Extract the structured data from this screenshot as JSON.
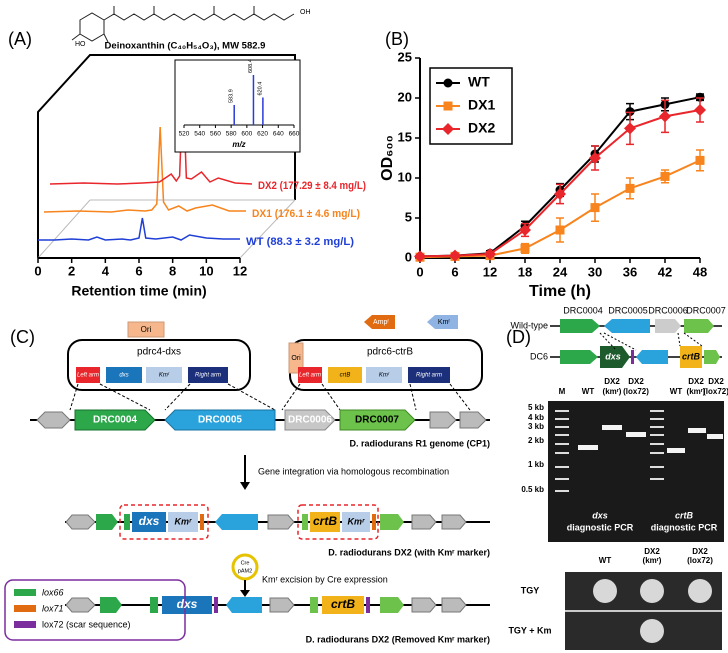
{
  "panel_labels": [
    "(A)",
    "(B)",
    "(C)",
    "(D)"
  ],
  "chart_data": [
    {
      "type": "line",
      "annotation": "Deinoxanthin (C₄₀H₅₄O₃), MW 582.9",
      "xlabel": "Retention time (min)",
      "xlim": [
        0,
        12
      ],
      "xticks": [
        0,
        2,
        4,
        6,
        8,
        10,
        12
      ],
      "series": [
        {
          "name": "WT (88.3 ± 3.2 mg/L)",
          "color": "#1f3fd6",
          "x": [
            0,
            1,
            2,
            3,
            3.5,
            4,
            5,
            5.5,
            6,
            6.2,
            6.4,
            7,
            8,
            8.5,
            9,
            10,
            11,
            12
          ],
          "values": [
            0,
            0,
            1,
            0,
            3,
            0,
            1,
            0,
            2,
            22,
            2,
            1,
            3,
            0,
            5,
            2,
            1,
            1
          ]
        },
        {
          "name": "DX1 (176.1 ± 4.6 mg/L)",
          "color": "#f7841c",
          "x": [
            0,
            2,
            4,
            5,
            6,
            6.4,
            6.7,
            6.9,
            7.1,
            7.4,
            8,
            8.5,
            9,
            10,
            11,
            12
          ],
          "values": [
            0,
            1,
            0,
            2,
            1,
            2,
            8,
            85,
            10,
            2,
            6,
            1,
            4,
            7,
            1,
            1
          ]
        },
        {
          "name": "DX2 (177.29 ± 8.4 mg/L)",
          "color": "#e8262b",
          "x": [
            0,
            2,
            4,
            5.5,
            6.5,
            7.2,
            7.5,
            7.7,
            7.9,
            8.1,
            8.4,
            9,
            9.5,
            10,
            11,
            12
          ],
          "values": [
            0,
            1,
            0,
            1,
            2,
            10,
            3,
            8,
            100,
            6,
            5,
            12,
            2,
            6,
            1,
            0
          ]
        }
      ],
      "inset": {
        "type": "bar",
        "xlabel": "m/z",
        "xlim": [
          520,
          660
        ],
        "xticks": [
          520,
          540,
          560,
          580,
          600,
          620,
          640,
          660
        ],
        "x": [
          583.9,
          608.4,
          620.4
        ],
        "values": [
          40,
          100,
          55
        ],
        "color": "#2a3bd6"
      }
    },
    {
      "type": "line",
      "ylabel": "OD₆₀₀",
      "xlabel": "Time (h)",
      "xlim": [
        0,
        48
      ],
      "xticks": [
        0,
        6,
        12,
        18,
        24,
        30,
        36,
        42,
        48
      ],
      "ylim": [
        0,
        25
      ],
      "yticks": [
        0,
        5,
        10,
        15,
        20,
        25
      ],
      "legend": "upper left",
      "series": [
        {
          "name": "WT",
          "color": "#000000",
          "marker": "circle",
          "values": [
            0.2,
            0.3,
            0.6,
            4,
            8.5,
            13,
            18.3,
            19.2,
            20.1
          ],
          "errors": [
            0.2,
            0.2,
            0.3,
            0.6,
            0.8,
            1,
            1,
            0.8,
            0.4
          ]
        },
        {
          "name": "DX1",
          "color": "#f7841c",
          "marker": "square",
          "values": [
            0.1,
            0.2,
            0.3,
            1.2,
            3.5,
            6.3,
            8.7,
            10.2,
            12.2
          ],
          "errors": [
            0.2,
            0.2,
            0.3,
            0.6,
            1.5,
            1.7,
            1.3,
            0.8,
            1.3
          ]
        },
        {
          "name": "DX2",
          "color": "#e8262b",
          "marker": "diamond",
          "values": [
            0.2,
            0.3,
            0.5,
            3.5,
            8,
            12.5,
            16.2,
            17.7,
            18.5
          ],
          "errors": [
            0.2,
            0.2,
            0.3,
            0.8,
            1.2,
            1.5,
            2,
            2,
            1.5
          ]
        }
      ]
    }
  ],
  "panel_c": {
    "plasmid_1": {
      "name": "pdrc4-dxs",
      "ori": "Ori",
      "parts": [
        "Left arm",
        "dxs",
        "Kmʳ",
        "Right arm"
      ]
    },
    "plasmid_2": {
      "name": "pdrc6-ctrB",
      "ori": "Ori",
      "amp": "Ampʳ",
      "km": "Kmʳ",
      "parts": [
        "Left arm",
        "crtB",
        "Kmʳ",
        "Right arm"
      ]
    },
    "genome_genes": [
      "DRC0004",
      "DRC0005",
      "DRC0006",
      "DRC0007"
    ],
    "genome_label": "D. radiodurans R1 genome (CP1)",
    "step_1": "Gene integration via homologous recombination",
    "dx2_inserts": [
      "dxs",
      "Kmʳ",
      "crtB",
      "Kmʳ"
    ],
    "dx2_label": "D. radiodurans DX2 (with Kmʳ marker)",
    "cre_plasmid": [
      "Cre",
      "pAM2"
    ],
    "step_2": "Kmʳ excision by Cre expression",
    "legend": [
      "lox66",
      "lox71",
      "lox72 (scar sequence)"
    ],
    "final_inserts": [
      "dxs",
      "crtB"
    ],
    "final_label": "D. radiodurans DX2 (Removed Kmʳ marker)"
  },
  "panel_d": {
    "map_rows": [
      "Wild-type",
      "DC6"
    ],
    "map_genes": [
      "DRC0004",
      "DRC0005",
      "DRC0006",
      "DRC0007"
    ],
    "map_inserts": [
      "dxs",
      "crtB"
    ],
    "gel_lanes": [
      [
        "M"
      ],
      [
        "WT"
      ],
      [
        "DX2",
        "(kmʳ)"
      ],
      [
        "DX2",
        "(lox72)"
      ],
      [
        "WT"
      ],
      [
        "DX2",
        "(kmʳ)"
      ],
      [
        "DX2",
        "(lox72)"
      ]
    ],
    "size_markers": [
      "5 kb",
      "4 kb",
      "3 kb",
      "2 kb",
      "1 kb",
      "0.5 kb"
    ],
    "gel_captions": [
      [
        "dxs",
        "diagnostic PCR"
      ],
      [
        "crtB",
        "diagnostic PCR"
      ]
    ],
    "plate_columns": [
      [
        "WT"
      ],
      [
        "DX2",
        "(kmʳ)"
      ],
      [
        "DX2",
        "(lox72)"
      ]
    ],
    "plate_rows": [
      "TGY",
      "TGY + Km"
    ]
  }
}
